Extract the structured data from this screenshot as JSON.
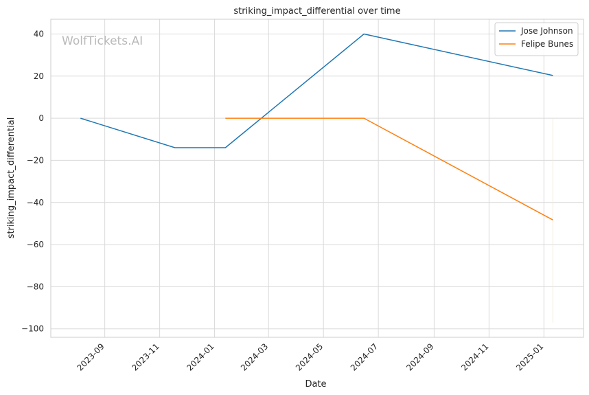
{
  "chart_data": {
    "type": "line",
    "title": "striking_impact_differential over time",
    "xlabel": "Date",
    "ylabel": "striking_impact_differential",
    "watermark": "WolfTickets.AI",
    "x_type": "date",
    "xlim": [
      "2023-07-03",
      "2025-02-14"
    ],
    "ylim": [
      -104,
      47
    ],
    "yticks": [
      40,
      20,
      0,
      -20,
      -40,
      -60,
      -80,
      -100
    ],
    "xticks": [
      "2023-09-01",
      "2023-11-01",
      "2024-01-01",
      "2024-03-01",
      "2024-05-01",
      "2024-07-01",
      "2024-09-01",
      "2024-11-01",
      "2025-01-01"
    ],
    "xtick_labels": [
      "2023-09",
      "2023-11",
      "2024-01",
      "2024-03",
      "2024-05",
      "2024-07",
      "2024-09",
      "2024-11",
      "2025-01"
    ],
    "grid": true,
    "legend_position": "top-right",
    "series": [
      {
        "name": "Jose Johnson",
        "color": "#1f77b4",
        "points": [
          {
            "x": "2023-08-05",
            "y": 0
          },
          {
            "x": "2023-11-18",
            "y": -14
          },
          {
            "x": "2024-01-13",
            "y": -14
          },
          {
            "x": "2024-06-15",
            "y": 40
          },
          {
            "x": "2025-01-11",
            "y": 20.3
          }
        ]
      },
      {
        "name": "Felipe Bunes",
        "color": "#ff7f0e",
        "points": [
          {
            "x": "2024-01-13",
            "y": 0
          },
          {
            "x": "2024-06-15",
            "y": 0
          },
          {
            "x": "2025-01-11",
            "y": -48.3
          }
        ]
      }
    ],
    "faint_vertical_line": {
      "x": "2025-01-11",
      "y_from": 0,
      "y_to": -97,
      "color": "#f3ead9"
    }
  }
}
